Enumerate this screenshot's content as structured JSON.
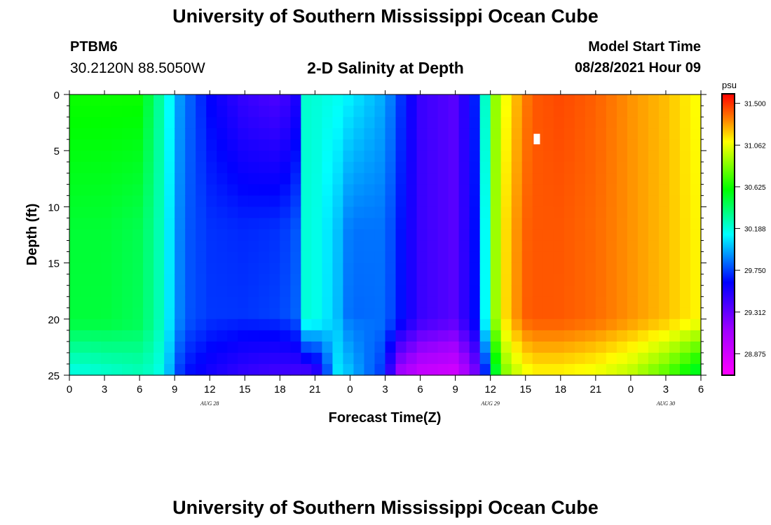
{
  "header": {
    "title": "University of Southern Mississippi Ocean Cube",
    "station_id": "PTBM6",
    "coordinates": "30.2120N  88.5050W",
    "model_start_label": "Model Start Time",
    "model_start_value": "08/28/2021 Hour 09",
    "footer_title": "University of Southern Mississippi Ocean Cube"
  },
  "chart_data": {
    "type": "heatmap",
    "title": "2-D Salinity at Depth",
    "xlabel": "Forecast Time(Z)",
    "ylabel": "Depth (ft)",
    "x_tick_labels": [
      "0",
      "3",
      "6",
      "9",
      "12",
      "15",
      "18",
      "21",
      "0",
      "3",
      "6",
      "9",
      "12",
      "15",
      "18",
      "21",
      "0",
      "3",
      "6"
    ],
    "x_range_hours": [
      0,
      54
    ],
    "date_labels": [
      {
        "text": "AUG 28",
        "hour": 12
      },
      {
        "text": "AUG 29",
        "hour": 36
      },
      {
        "text": "AUG 30",
        "hour": 51
      }
    ],
    "y_tick_labels": [
      "0",
      "5",
      "10",
      "15",
      "20",
      "25"
    ],
    "y_range_ft": [
      0,
      25
    ],
    "colorbar": {
      "unit": "psu",
      "min": 28.65,
      "max": 31.6,
      "tick_labels": [
        "31.500",
        "31.062",
        "30.625",
        "30.188",
        "29.750",
        "29.312",
        "28.875"
      ],
      "tick_values": [
        31.5,
        31.062,
        30.625,
        30.188,
        29.75,
        29.312,
        28.875
      ]
    },
    "salinity_profiles": {
      "hours": [
        0,
        3,
        6,
        7.5,
        8.5,
        9,
        10,
        12,
        15,
        18,
        19.5,
        20,
        21,
        23,
        24,
        27,
        28,
        30,
        33,
        35,
        36,
        36.5,
        37.5,
        39,
        40,
        42,
        45,
        48,
        51,
        54
      ],
      "surface_psu": [
        30.62,
        30.62,
        30.62,
        30.35,
        30.15,
        29.98,
        29.85,
        29.62,
        29.45,
        29.38,
        29.55,
        30.22,
        30.2,
        30.15,
        30.1,
        29.95,
        29.78,
        29.45,
        29.35,
        29.75,
        30.62,
        30.92,
        31.12,
        31.35,
        31.42,
        31.45,
        31.4,
        31.3,
        31.22,
        31.08
      ],
      "mid_psu": [
        30.5,
        30.5,
        30.45,
        30.3,
        30.1,
        29.95,
        29.8,
        29.72,
        29.7,
        29.72,
        29.8,
        30.2,
        30.18,
        30.0,
        29.85,
        29.85,
        29.7,
        29.45,
        29.35,
        29.7,
        30.5,
        30.95,
        31.2,
        31.4,
        31.42,
        31.42,
        31.38,
        31.3,
        31.22,
        31.1
      ],
      "bottom_psu": [
        30.15,
        30.2,
        30.25,
        30.2,
        30.0,
        29.8,
        29.65,
        29.55,
        29.45,
        29.4,
        29.4,
        29.35,
        29.4,
        30.1,
        30.0,
        29.7,
        29.1,
        28.9,
        28.85,
        29.3,
        29.95,
        30.55,
        30.9,
        31.05,
        31.1,
        31.1,
        31.05,
        30.95,
        30.75,
        30.45
      ]
    },
    "annotation_marker": {
      "hour": 40,
      "depth_ft": 4
    }
  }
}
